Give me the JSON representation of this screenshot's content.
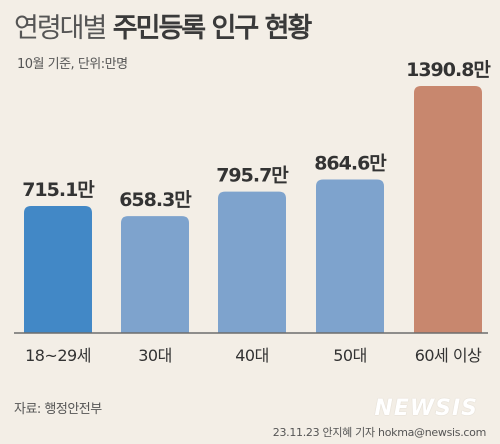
{
  "header": {
    "title_pre": "연령대별",
    "title_main": "주민등록 인구 현황",
    "subtitle": "10월 기준, 단위:만명"
  },
  "footer": {
    "source": "자료: 행정안전부",
    "watermark": "NEWSIS",
    "credit": "23.11.23 안지혜 기자 hokma@newsis.com"
  },
  "colors": {
    "bar_first": "#4288c6",
    "bar_mid": "#7ea3cd",
    "bar_last": "#c8876e",
    "axis": "#6d6d6d"
  },
  "chart_data": {
    "type": "bar",
    "title": "연령대별 주민등록 인구 현황",
    "unit": "만명",
    "categories": [
      "18~29세",
      "30대",
      "40대",
      "50대",
      "60세 이상"
    ],
    "values": [
      715.1,
      658.3,
      795.7,
      864.6,
      1390.8
    ],
    "data_labels": [
      "715.1만",
      "658.3만",
      "795.7만",
      "864.6만",
      "1390.8만"
    ],
    "ylim": [
      0,
      1390.8
    ],
    "grid": false,
    "legend": "none"
  }
}
